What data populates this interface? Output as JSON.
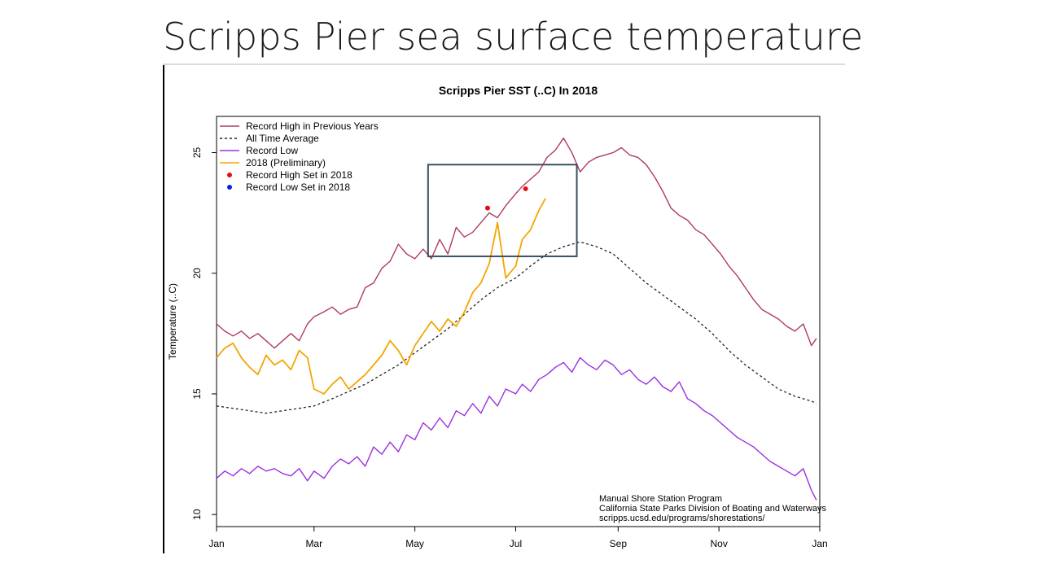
{
  "slide": {
    "title": "Scripps Pier sea surface temperature"
  },
  "colors": {
    "record_high": "#b03a5e",
    "average": "#222222",
    "record_low": "#9b30e0",
    "current": "#f5a500",
    "record_high_set": "#e01010",
    "record_low_set": "#1020e0",
    "highlight_box": "#3a4f66",
    "link": "#1a2ccc"
  },
  "chart_data": {
    "type": "line",
    "title": "Scripps Pier SST (..C) In 2018",
    "xlabel": "",
    "ylabel": "Temperature (..C)",
    "xlim": [
      0,
      365
    ],
    "ylim": [
      9.5,
      26.5
    ],
    "x_ticks": [
      {
        "label": "Jan",
        "value": 0
      },
      {
        "label": "Mar",
        "value": 59
      },
      {
        "label": "May",
        "value": 120
      },
      {
        "label": "Jul",
        "value": 181
      },
      {
        "label": "Sep",
        "value": 243
      },
      {
        "label": "Nov",
        "value": 304
      },
      {
        "label": "Jan",
        "value": 365
      }
    ],
    "y_ticks": [
      10,
      15,
      20,
      25
    ],
    "legend_position": "top-left",
    "grid": false,
    "series": [
      {
        "name": "Record High in Previous Years",
        "style": "line",
        "color": "#b03a5e",
        "x": [
          0,
          5,
          10,
          15,
          20,
          25,
          30,
          35,
          40,
          45,
          50,
          55,
          59,
          65,
          70,
          75,
          80,
          85,
          90,
          95,
          100,
          105,
          110,
          115,
          120,
          125,
          130,
          135,
          140,
          145,
          150,
          155,
          160,
          165,
          170,
          175,
          181,
          185,
          190,
          195,
          200,
          205,
          210,
          215,
          220,
          225,
          230,
          235,
          240,
          245,
          250,
          255,
          260,
          265,
          270,
          275,
          280,
          285,
          290,
          295,
          300,
          305,
          310,
          315,
          320,
          325,
          330,
          335,
          340,
          345,
          350,
          355,
          360,
          363
        ],
        "y": [
          17.9,
          17.6,
          17.4,
          17.6,
          17.3,
          17.5,
          17.2,
          16.9,
          17.2,
          17.5,
          17.2,
          17.9,
          18.2,
          18.4,
          18.6,
          18.3,
          18.5,
          18.6,
          19.4,
          19.6,
          20.2,
          20.5,
          21.2,
          20.8,
          20.6,
          21.0,
          20.6,
          21.4,
          20.8,
          21.9,
          21.5,
          21.7,
          22.1,
          22.5,
          22.3,
          22.8,
          23.3,
          23.6,
          23.9,
          24.2,
          24.8,
          25.1,
          25.6,
          25.0,
          24.2,
          24.6,
          24.8,
          24.9,
          25.0,
          25.2,
          24.9,
          24.8,
          24.5,
          24.0,
          23.4,
          22.7,
          22.4,
          22.2,
          21.8,
          21.6,
          21.2,
          20.8,
          20.3,
          19.9,
          19.4,
          18.9,
          18.5,
          18.3,
          18.1,
          17.8,
          17.6,
          17.9,
          17.0,
          17.3
        ]
      },
      {
        "name": "All Time Average",
        "style": "dashed",
        "color": "#222222",
        "x": [
          0,
          10,
          20,
          30,
          40,
          50,
          59,
          70,
          80,
          90,
          100,
          110,
          120,
          130,
          140,
          150,
          160,
          170,
          181,
          190,
          200,
          210,
          220,
          230,
          240,
          250,
          260,
          270,
          280,
          290,
          300,
          310,
          320,
          330,
          340,
          350,
          360,
          363
        ],
        "y": [
          14.5,
          14.4,
          14.3,
          14.2,
          14.3,
          14.4,
          14.5,
          14.8,
          15.1,
          15.4,
          15.8,
          16.2,
          16.7,
          17.2,
          17.7,
          18.3,
          18.9,
          19.4,
          19.8,
          20.3,
          20.8,
          21.1,
          21.3,
          21.1,
          20.8,
          20.2,
          19.6,
          19.1,
          18.6,
          18.1,
          17.5,
          16.8,
          16.2,
          15.7,
          15.2,
          14.9,
          14.7,
          14.6
        ]
      },
      {
        "name": "Record Low",
        "style": "line",
        "color": "#9b30e0",
        "x": [
          0,
          5,
          10,
          15,
          20,
          25,
          30,
          35,
          40,
          45,
          50,
          55,
          59,
          65,
          70,
          75,
          80,
          85,
          90,
          95,
          100,
          105,
          110,
          115,
          120,
          125,
          130,
          135,
          140,
          145,
          150,
          155,
          160,
          165,
          170,
          175,
          181,
          185,
          190,
          195,
          200,
          205,
          210,
          215,
          220,
          225,
          230,
          235,
          240,
          245,
          250,
          255,
          260,
          265,
          270,
          275,
          280,
          285,
          290,
          295,
          300,
          305,
          310,
          315,
          320,
          325,
          330,
          335,
          340,
          345,
          350,
          355,
          360,
          363
        ],
        "y": [
          11.5,
          11.8,
          11.6,
          11.9,
          11.7,
          12.0,
          11.8,
          11.9,
          11.7,
          11.6,
          11.9,
          11.4,
          11.8,
          11.5,
          12.0,
          12.3,
          12.1,
          12.4,
          12.0,
          12.8,
          12.5,
          13.0,
          12.6,
          13.3,
          13.1,
          13.8,
          13.5,
          14.0,
          13.6,
          14.3,
          14.1,
          14.6,
          14.2,
          14.9,
          14.5,
          15.2,
          15.0,
          15.4,
          15.1,
          15.6,
          15.8,
          16.1,
          16.3,
          15.9,
          16.5,
          16.2,
          16.0,
          16.4,
          16.2,
          15.8,
          16.0,
          15.6,
          15.4,
          15.7,
          15.3,
          15.1,
          15.5,
          14.8,
          14.6,
          14.3,
          14.1,
          13.8,
          13.5,
          13.2,
          13.0,
          12.8,
          12.5,
          12.2,
          12.0,
          11.8,
          11.6,
          11.9,
          11.0,
          10.6
        ]
      },
      {
        "name": "2018 (Preliminary)",
        "style": "line",
        "color": "#f5a500",
        "x": [
          0,
          5,
          10,
          15,
          20,
          25,
          30,
          35,
          40,
          45,
          50,
          55,
          59,
          65,
          70,
          75,
          80,
          85,
          90,
          95,
          100,
          105,
          110,
          115,
          120,
          125,
          130,
          135,
          140,
          145,
          150,
          155,
          160,
          165,
          170,
          175,
          181,
          185,
          190,
          195,
          199
        ],
        "y": [
          16.5,
          16.9,
          17.1,
          16.5,
          16.1,
          15.8,
          16.6,
          16.2,
          16.4,
          16.0,
          16.8,
          16.5,
          15.2,
          15.0,
          15.4,
          15.7,
          15.2,
          15.5,
          15.8,
          16.2,
          16.6,
          17.2,
          16.8,
          16.2,
          17.0,
          17.5,
          18.0,
          17.6,
          18.1,
          17.8,
          18.4,
          19.2,
          19.6,
          20.4,
          22.1,
          19.8,
          20.3,
          21.4,
          21.8,
          22.6,
          23.1
        ]
      },
      {
        "name": "Record High Set in 2018",
        "style": "points",
        "color": "#e01010",
        "x": [
          164,
          187
        ],
        "y": [
          22.7,
          23.5
        ]
      },
      {
        "name": "Record Low Set in 2018",
        "style": "points",
        "color": "#1020e0",
        "x": [],
        "y": []
      }
    ],
    "highlight_box": {
      "x": [
        128,
        218
      ],
      "y": [
        20.7,
        24.5
      ]
    },
    "annotations": [
      {
        "text": "Manual Shore Station Program",
        "style": "plain"
      },
      {
        "text": "California State Parks Division of Boating and Waterways",
        "style": "plain"
      },
      {
        "text": "scripps.ucsd.edu/programs/shorestations/",
        "style": "link"
      }
    ]
  }
}
